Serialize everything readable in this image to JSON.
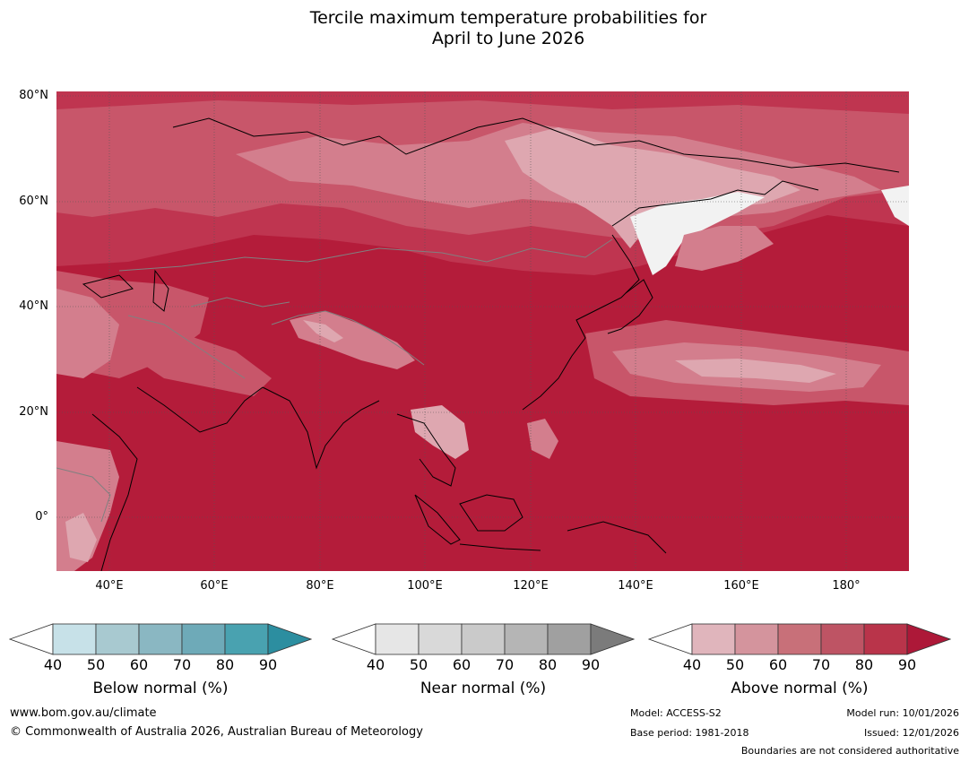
{
  "title": {
    "line1": "Tercile maximum temperature probabilities for",
    "line2": "April to June 2026"
  },
  "map": {
    "lat_labels": [
      "80°N",
      "60°N",
      "40°N",
      "20°N",
      "0°"
    ],
    "lon_labels": [
      "40°E",
      "60°E",
      "80°E",
      "100°E",
      "120°E",
      "140°E",
      "160°E",
      "180°"
    ],
    "extent": {
      "lon": [
        30,
        192
      ],
      "lat": [
        -10,
        81
      ]
    },
    "dominant_category": "Above normal",
    "colors": {
      "above_90": "#b41c3a",
      "above_80": "#bf3550",
      "above_70": "#c8566a",
      "above_60": "#d37e8d",
      "above_50": "#dea7b0",
      "neutral": "#f2f2f2",
      "coast": "#000000",
      "border": "#808080",
      "grid": "#555555"
    }
  },
  "colorbars": [
    {
      "title": "Below normal (%)",
      "ticks": [
        "40",
        "50",
        "60",
        "70",
        "80",
        "90"
      ],
      "colors": [
        "#ffffff",
        "#c7e1e8",
        "#a8c9d0",
        "#8ab7c2",
        "#6eaab8",
        "#49a2b0",
        "#2c8ea0"
      ]
    },
    {
      "title": "Near normal (%)",
      "ticks": [
        "40",
        "50",
        "60",
        "70",
        "80",
        "90"
      ],
      "colors": [
        "#ffffff",
        "#e6e6e6",
        "#d9d9d9",
        "#cacaca",
        "#b5b5b5",
        "#a0a0a0",
        "#7b7b7b"
      ]
    },
    {
      "title": "Above normal (%)",
      "ticks": [
        "40",
        "50",
        "60",
        "70",
        "80",
        "90"
      ],
      "colors": [
        "#ffffff",
        "#e0b5bc",
        "#d4949d",
        "#c87079",
        "#be5464",
        "#b9344a",
        "#ad1838"
      ]
    }
  ],
  "footer": {
    "website": "www.bom.gov.au/climate",
    "copyright": "© Commonwealth of Australia 2026, Australian Bureau of Meteorology",
    "model": "Model: ACCESS-S2",
    "base_period": "Base period: 1981-2018",
    "model_run": "Model run: 10/01/2026",
    "issued": "Issued: 12/01/2026",
    "disclaimer": "Boundaries are not considered authoritative"
  }
}
